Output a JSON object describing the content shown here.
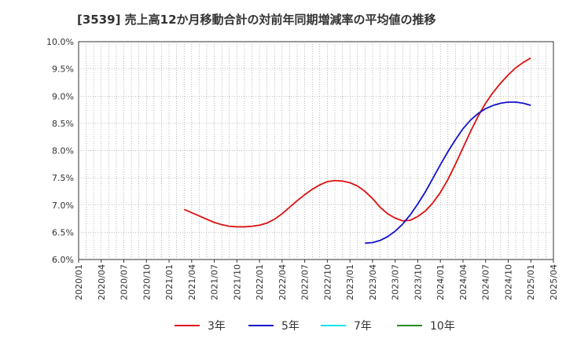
{
  "chart_data": {
    "type": "line",
    "title": "[3539]  売上高12か月移動合計の対前年同期増減率の平均値の推移",
    "xlabel": "",
    "ylabel": "",
    "ylim": [
      6.0,
      10.0
    ],
    "y_ticks": [
      "6.0%",
      "6.5%",
      "7.0%",
      "7.5%",
      "8.0%",
      "8.5%",
      "9.0%",
      "9.5%",
      "10.0%"
    ],
    "x_ticks": [
      "2020/01",
      "2020/04",
      "2020/07",
      "2020/10",
      "2021/01",
      "2021/04",
      "2021/07",
      "2021/10",
      "2022/01",
      "2022/04",
      "2022/07",
      "2022/10",
      "2023/01",
      "2023/04",
      "2023/07",
      "2023/10",
      "2024/01",
      "2024/04",
      "2024/07",
      "2024/10",
      "2025/01",
      "2025/04"
    ],
    "grid": true,
    "legend_position": "bottom",
    "series": [
      {
        "name": "3年",
        "color": "#dd1111",
        "x": [
          "2021/03",
          "2021/04",
          "2021/05",
          "2021/06",
          "2021/07",
          "2021/08",
          "2021/09",
          "2021/10",
          "2021/11",
          "2021/12",
          "2022/01",
          "2022/02",
          "2022/03",
          "2022/04",
          "2022/05",
          "2022/06",
          "2022/07",
          "2022/08",
          "2022/09",
          "2022/10",
          "2022/11",
          "2022/12",
          "2023/01",
          "2023/02",
          "2023/03",
          "2023/04",
          "2023/05",
          "2023/06",
          "2023/07",
          "2023/08",
          "2023/09",
          "2023/10",
          "2023/11",
          "2023/12",
          "2024/01",
          "2024/02",
          "2024/03",
          "2024/04",
          "2024/05",
          "2024/06",
          "2024/07",
          "2024/08",
          "2024/09",
          "2024/10",
          "2024/11",
          "2024/12",
          "2025/01"
        ],
        "values": [
          6.92,
          6.86,
          6.8,
          6.74,
          6.68,
          6.64,
          6.61,
          6.6,
          6.6,
          6.61,
          6.63,
          6.67,
          6.74,
          6.84,
          6.96,
          7.08,
          7.19,
          7.29,
          7.37,
          7.43,
          7.45,
          7.44,
          7.41,
          7.35,
          7.25,
          7.12,
          6.96,
          6.84,
          6.76,
          6.71,
          6.72,
          6.79,
          6.89,
          7.04,
          7.23,
          7.47,
          7.75,
          8.05,
          8.35,
          8.63,
          8.87,
          9.07,
          9.24,
          9.39,
          9.52,
          9.62,
          9.7
        ]
      },
      {
        "name": "5年",
        "color": "#1111cc",
        "x": [
          "2023/03",
          "2023/04",
          "2023/05",
          "2023/06",
          "2023/07",
          "2023/08",
          "2023/09",
          "2023/10",
          "2023/11",
          "2023/12",
          "2024/01",
          "2024/02",
          "2024/03",
          "2024/04",
          "2024/05",
          "2024/06",
          "2024/07",
          "2024/08",
          "2024/09",
          "2024/10",
          "2024/11",
          "2024/12",
          "2025/01"
        ],
        "values": [
          6.3,
          6.31,
          6.35,
          6.42,
          6.52,
          6.65,
          6.82,
          7.02,
          7.24,
          7.49,
          7.74,
          7.98,
          8.2,
          8.4,
          8.56,
          8.68,
          8.77,
          8.83,
          8.87,
          8.89,
          8.89,
          8.87,
          8.83
        ]
      },
      {
        "name": "7年",
        "color": "#00e5ee",
        "x": [],
        "values": []
      },
      {
        "name": "10年",
        "color": "#228b22",
        "x": [],
        "values": []
      }
    ]
  }
}
